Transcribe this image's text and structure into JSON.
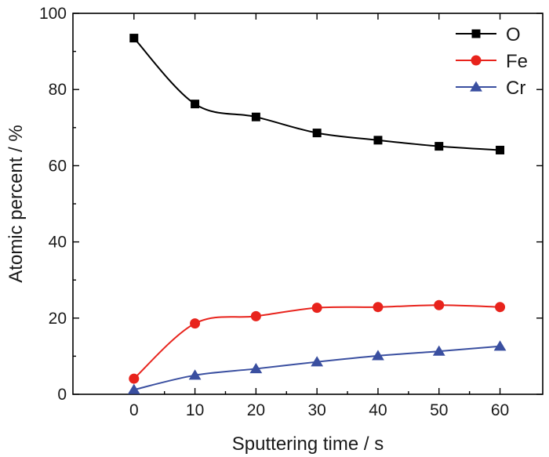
{
  "chart_data": {
    "type": "line",
    "title": "",
    "xlabel": "Sputtering time / s",
    "ylabel": "Atomic percent / %",
    "xlim": [
      -10,
      67
    ],
    "ylim": [
      0,
      100
    ],
    "xticks": [
      0,
      10,
      20,
      30,
      40,
      50,
      60
    ],
    "yticks": [
      0,
      20,
      40,
      60,
      80,
      100
    ],
    "grid": false,
    "legend_position": "top-right",
    "x": [
      0,
      10,
      20,
      30,
      40,
      50,
      60
    ],
    "series": [
      {
        "name": "O",
        "values": [
          93.5,
          76.2,
          72.8,
          68.6,
          66.7,
          65.1,
          64.1
        ],
        "color": "#000000",
        "marker": "square"
      },
      {
        "name": "Fe",
        "values": [
          4.1,
          18.6,
          20.5,
          22.7,
          22.9,
          23.4,
          22.9
        ],
        "color": "#e8231c",
        "marker": "circle"
      },
      {
        "name": "Cr",
        "values": [
          1.2,
          5.0,
          6.7,
          8.5,
          10.1,
          11.3,
          12.6
        ],
        "color": "#3a4fa0",
        "marker": "triangle"
      }
    ]
  }
}
